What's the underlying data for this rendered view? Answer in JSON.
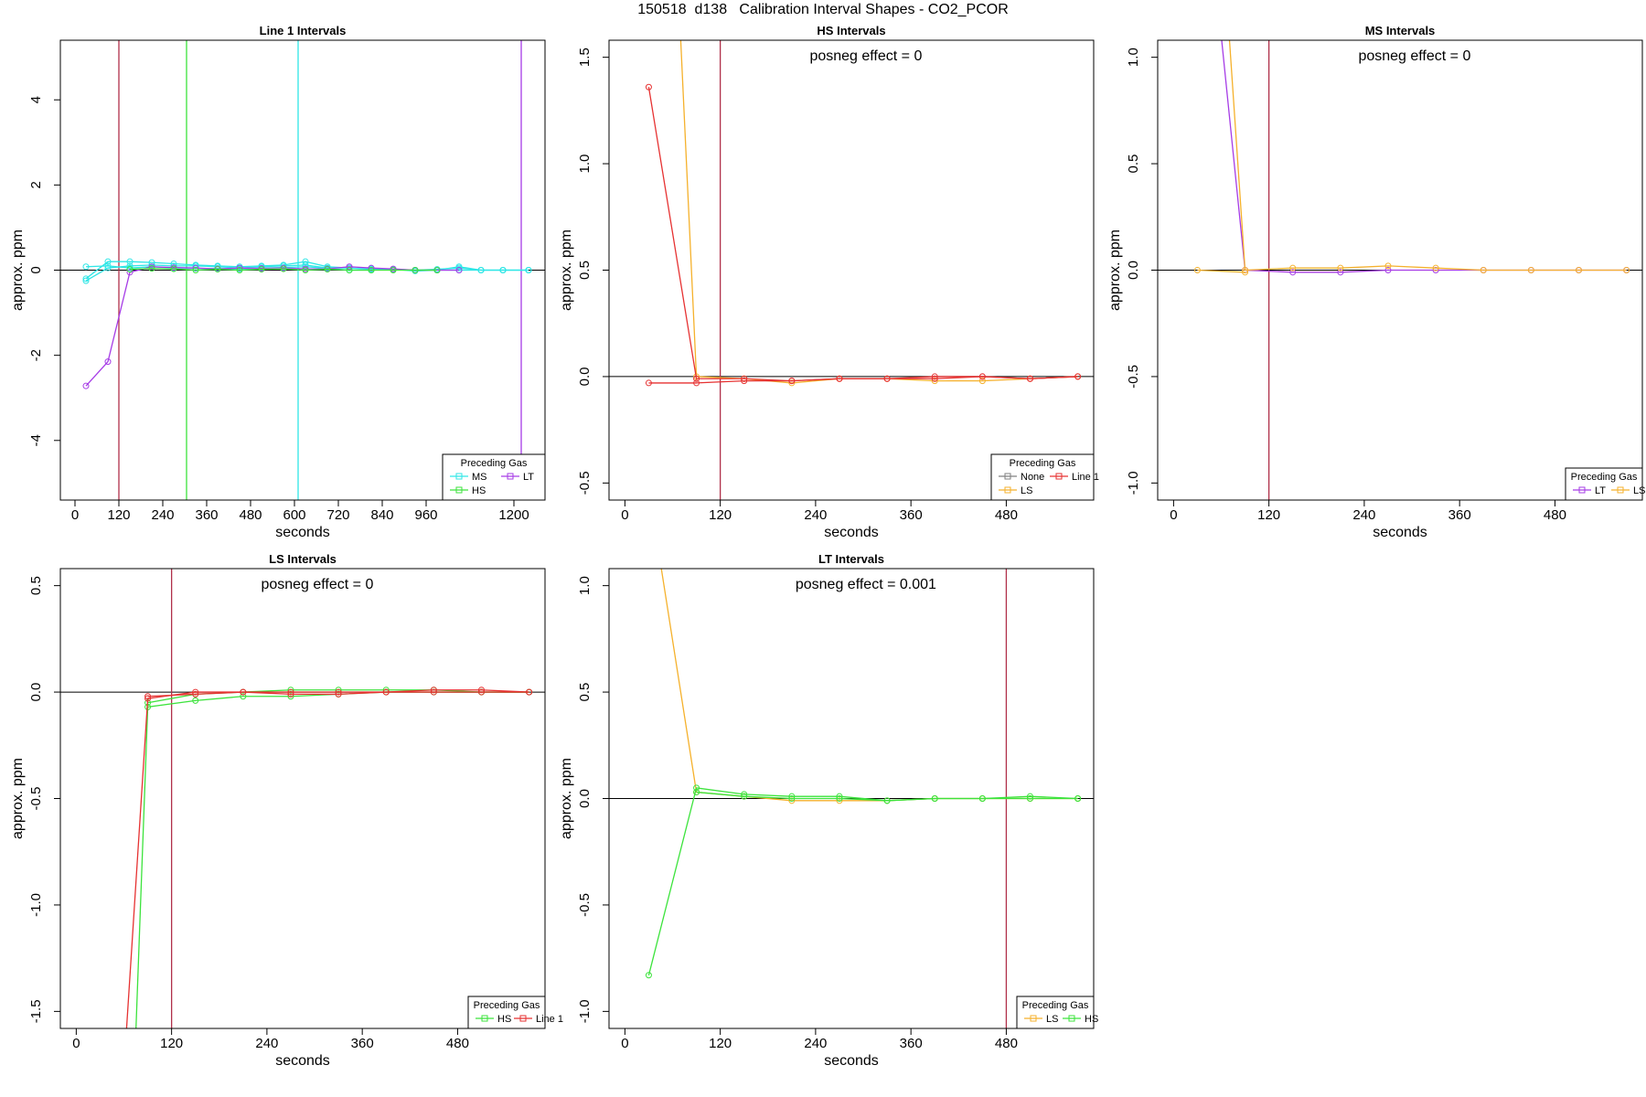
{
  "page_title": "150518  d138   Calibration Interval Shapes - CO2_PCOR",
  "colors": {
    "MS": "#2fe6e6",
    "HS": "#3ce33c",
    "LT": "#a63ce6",
    "LS": "#f5b12c",
    "Line 1": "#e63232",
    "None": "#808080",
    "interval_marker": "#b0304a",
    "zero_line": "#000000"
  },
  "chart_data": [
    {
      "type": "line",
      "title": "Line 1 Intervals",
      "xlabel": "seconds",
      "ylabel": "approx. ppm",
      "xlim": [
        -40,
        1285
      ],
      "ylim": [
        -5.4,
        5.4
      ],
      "xticks": [
        0,
        120,
        240,
        360,
        480,
        600,
        720,
        840,
        960,
        1200
      ],
      "yticks": [
        -4,
        -2,
        0,
        2,
        4
      ],
      "vlines": [
        {
          "x": 120,
          "color": "#b0304a"
        },
        {
          "x": 305,
          "color": "#3ce33c"
        },
        {
          "x": 610,
          "color": "#2fe6e6"
        },
        {
          "x": 1220,
          "color": "#a63ce6"
        }
      ],
      "annotation": "",
      "legend": {
        "title": "Preceding Gas",
        "position": "bottom-right",
        "entries": [
          "MS",
          "LT",
          "HS"
        ]
      },
      "series": [
        {
          "name": "MS",
          "color": "#2fe6e6",
          "x": [
            30,
            90,
            150,
            210,
            270,
            330,
            390,
            450,
            510,
            570,
            630,
            690,
            750,
            810,
            870,
            930,
            990,
            1050,
            1110,
            1170,
            1240
          ],
          "y": [
            -0.2,
            0.2,
            0.2,
            0.18,
            0.15,
            0.12,
            0.1,
            0.08,
            0.1,
            0.12,
            0.2,
            0.08,
            0.05,
            0.04,
            0.02,
            0.0,
            0.02,
            0.05,
            0.0,
            0.0,
            0.0
          ]
        },
        {
          "name": "MS",
          "color": "#2fe6e6",
          "x": [
            30,
            90,
            150,
            210,
            270,
            330,
            390,
            450,
            510,
            570,
            630,
            690,
            750,
            810,
            870,
            930,
            990,
            1050,
            1110,
            1170,
            1240
          ],
          "y": [
            -0.25,
            0.05,
            0.1,
            0.12,
            0.1,
            0.1,
            0.08,
            0.05,
            0.08,
            0.1,
            0.12,
            0.05,
            0.05,
            0.02,
            0.02,
            -0.02,
            0.0,
            0.08,
            0.0,
            0.0,
            0.0
          ]
        },
        {
          "name": "MS",
          "color": "#2fe6e6",
          "x": [
            30,
            90,
            150,
            210,
            270,
            330,
            390,
            450,
            510,
            570,
            630,
            690,
            750,
            810,
            870,
            930,
            990,
            1050,
            1110,
            1170,
            1240
          ],
          "y": [
            0.08,
            0.1,
            0.05,
            0.08,
            0.05,
            0.04,
            0.04,
            0.03,
            0.05,
            0.06,
            0.08,
            0.04,
            0.0,
            0.0,
            0.02,
            0.0,
            0.0,
            0.0,
            0.0,
            0.0,
            0.0
          ]
        },
        {
          "name": "LT",
          "color": "#a63ce6",
          "x": [
            30,
            90,
            150,
            210,
            270,
            330,
            390,
            450,
            510,
            570,
            630,
            690,
            750,
            810,
            870,
            930,
            990,
            1050
          ],
          "y": [
            -2.72,
            -2.15,
            -0.05,
            0.08,
            0.06,
            0.05,
            0.03,
            0.05,
            0.04,
            0.05,
            0.03,
            0.03,
            0.08,
            0.05,
            0.03,
            0.0,
            0.0,
            0.0
          ]
        },
        {
          "name": "HS",
          "color": "#3ce33c",
          "x": [
            150,
            210,
            270,
            330,
            390,
            450,
            510,
            570,
            630,
            690,
            750,
            810,
            870,
            930,
            990
          ],
          "y": [
            0.02,
            0.04,
            0.03,
            0.0,
            0.02,
            0.0,
            0.02,
            0.03,
            0.0,
            0.02,
            0.0,
            0.0,
            0.0,
            0.0,
            0.0
          ]
        }
      ]
    },
    {
      "type": "line",
      "title": "HS Intervals",
      "xlabel": "seconds",
      "ylabel": "approx. ppm",
      "xlim": [
        -20,
        590
      ],
      "ylim": [
        -0.58,
        1.58
      ],
      "xticks": [
        0,
        120,
        240,
        360,
        480
      ],
      "yticks": [
        -0.5,
        0.0,
        0.5,
        1.0,
        1.5
      ],
      "vlines": [
        {
          "x": 120,
          "color": "#b0304a"
        }
      ],
      "annotation": "posneg effect = 0",
      "legend": {
        "title": "Preceding Gas",
        "position": "bottom-right",
        "entries": [
          "None",
          "Line 1",
          "LS"
        ]
      },
      "series": [
        {
          "name": "LS",
          "color": "#f5b12c",
          "x": [
            70,
            90,
            150,
            210,
            270,
            330,
            390,
            450,
            510,
            570
          ],
          "y": [
            1.6,
            0.0,
            -0.01,
            -0.03,
            -0.01,
            -0.01,
            -0.02,
            -0.02,
            -0.01,
            0.0
          ]
        },
        {
          "name": "Line 1",
          "color": "#e63232",
          "x": [
            30,
            90,
            150,
            210,
            270,
            330,
            390,
            450,
            510,
            570
          ],
          "y": [
            1.36,
            -0.01,
            -0.01,
            -0.02,
            -0.01,
            -0.01,
            0.0,
            0.0,
            -0.01,
            0.0
          ]
        },
        {
          "name": "Line 1",
          "color": "#e63232",
          "x": [
            30,
            90,
            150,
            210,
            270,
            330,
            390,
            450,
            510,
            570
          ],
          "y": [
            -0.03,
            -0.03,
            -0.02,
            -0.02,
            -0.01,
            -0.01,
            -0.01,
            0.0,
            -0.01,
            0.0
          ]
        }
      ]
    },
    {
      "type": "line",
      "title": "MS Intervals",
      "xlabel": "seconds",
      "ylabel": "approx. ppm",
      "xlim": [
        -20,
        590
      ],
      "ylim": [
        -1.08,
        1.08
      ],
      "xticks": [
        0,
        120,
        240,
        360,
        480
      ],
      "yticks": [
        -1.0,
        -0.5,
        0.0,
        0.5,
        1.0
      ],
      "vlines": [
        {
          "x": 120,
          "color": "#b0304a"
        }
      ],
      "annotation": "posneg effect = 0",
      "legend": {
        "title": "Preceding Gas",
        "position": "bottom-right",
        "entries": [
          "LT",
          "LS"
        ]
      },
      "series": [
        {
          "name": "LT",
          "color": "#a63ce6",
          "x": [
            60,
            90,
            150,
            210,
            270,
            330,
            390,
            450,
            510,
            570
          ],
          "y": [
            1.1,
            0.0,
            -0.01,
            -0.01,
            0.0,
            0.0,
            0.0,
            0.0,
            0.0,
            0.0
          ]
        },
        {
          "name": "LS",
          "color": "#f5b12c",
          "x": [
            70,
            90,
            150,
            210,
            270,
            330,
            390,
            450,
            510,
            570
          ],
          "y": [
            1.1,
            0.0,
            0.01,
            0.01,
            0.02,
            0.01,
            0.0,
            0.0,
            0.0,
            0.0
          ]
        },
        {
          "name": "LS",
          "color": "#f5b12c",
          "x": [
            30,
            90
          ],
          "y": [
            0.0,
            -0.01
          ]
        }
      ]
    },
    {
      "type": "line",
      "title": "LS Intervals",
      "xlabel": "seconds",
      "ylabel": "approx. ppm",
      "xlim": [
        -20,
        590
      ],
      "ylim": [
        -1.58,
        0.58
      ],
      "xticks": [
        0,
        120,
        240,
        360,
        480
      ],
      "yticks": [
        -1.5,
        -1.0,
        -0.5,
        0.0,
        0.5
      ],
      "vlines": [
        {
          "x": 120,
          "color": "#b0304a"
        }
      ],
      "annotation": "posneg effect = 0",
      "legend": {
        "title": "Preceding Gas",
        "position": "bottom-right",
        "entries": [
          "HS",
          "Line 1"
        ]
      },
      "series": [
        {
          "name": "HS",
          "color": "#3ce33c",
          "x": [
            75,
            90,
            150,
            210,
            270,
            330,
            390,
            450,
            510,
            570
          ],
          "y": [
            -1.6,
            -0.07,
            -0.04,
            -0.02,
            -0.02,
            -0.01,
            0.0,
            0.0,
            0.0,
            0.0
          ]
        },
        {
          "name": "HS",
          "color": "#3ce33c",
          "x": [
            90,
            150,
            210,
            270,
            330,
            390,
            450,
            510,
            570
          ],
          "y": [
            -0.05,
            -0.01,
            0.0,
            0.01,
            0.01,
            0.01,
            0.01,
            0.0,
            0.0
          ]
        },
        {
          "name": "Line 1",
          "color": "#e63232",
          "x": [
            63,
            90,
            150,
            210,
            270,
            330,
            390,
            450,
            510,
            570
          ],
          "y": [
            -1.6,
            -0.03,
            0.0,
            0.0,
            -0.01,
            -0.01,
            0.0,
            0.01,
            0.01,
            0.0
          ]
        },
        {
          "name": "Line 1",
          "color": "#e63232",
          "x": [
            90,
            150,
            210,
            270,
            330,
            390,
            450,
            510,
            570
          ],
          "y": [
            -0.02,
            -0.01,
            0.0,
            0.0,
            0.0,
            0.0,
            0.0,
            0.0,
            0.0
          ]
        }
      ]
    },
    {
      "type": "line",
      "title": "LT Intervals",
      "xlabel": "seconds",
      "ylabel": "approx. ppm",
      "xlim": [
        -20,
        590
      ],
      "ylim": [
        -1.08,
        1.08
      ],
      "xticks": [
        0,
        120,
        240,
        360,
        480
      ],
      "yticks": [
        -1.0,
        -0.5,
        0.0,
        0.5,
        1.0
      ],
      "vlines": [
        {
          "x": 480,
          "color": "#b0304a"
        }
      ],
      "annotation": "posneg effect = 0.001",
      "legend": {
        "title": "Preceding Gas",
        "position": "bottom-right",
        "entries": [
          "LS",
          "HS"
        ]
      },
      "series": [
        {
          "name": "LS",
          "color": "#f5b12c",
          "x": [
            45,
            90,
            150,
            210,
            270,
            330,
            390,
            450,
            510,
            570
          ],
          "y": [
            1.1,
            0.03,
            0.01,
            -0.01,
            -0.01,
            -0.01,
            0.0,
            0.0,
            0.0,
            0.0
          ]
        },
        {
          "name": "HS",
          "color": "#3ce33c",
          "x": [
            30,
            90,
            150,
            210,
            270,
            330,
            390,
            450,
            510,
            570
          ],
          "y": [
            -0.83,
            0.05,
            0.02,
            0.01,
            0.01,
            -0.01,
            0.0,
            0.0,
            0.01,
            0.0
          ]
        },
        {
          "name": "HS",
          "color": "#3ce33c",
          "x": [
            90,
            150,
            210,
            270,
            330,
            390,
            450,
            510,
            570
          ],
          "y": [
            0.03,
            0.01,
            0.0,
            0.0,
            -0.01,
            0.0,
            0.0,
            0.0,
            0.0
          ]
        }
      ]
    }
  ]
}
